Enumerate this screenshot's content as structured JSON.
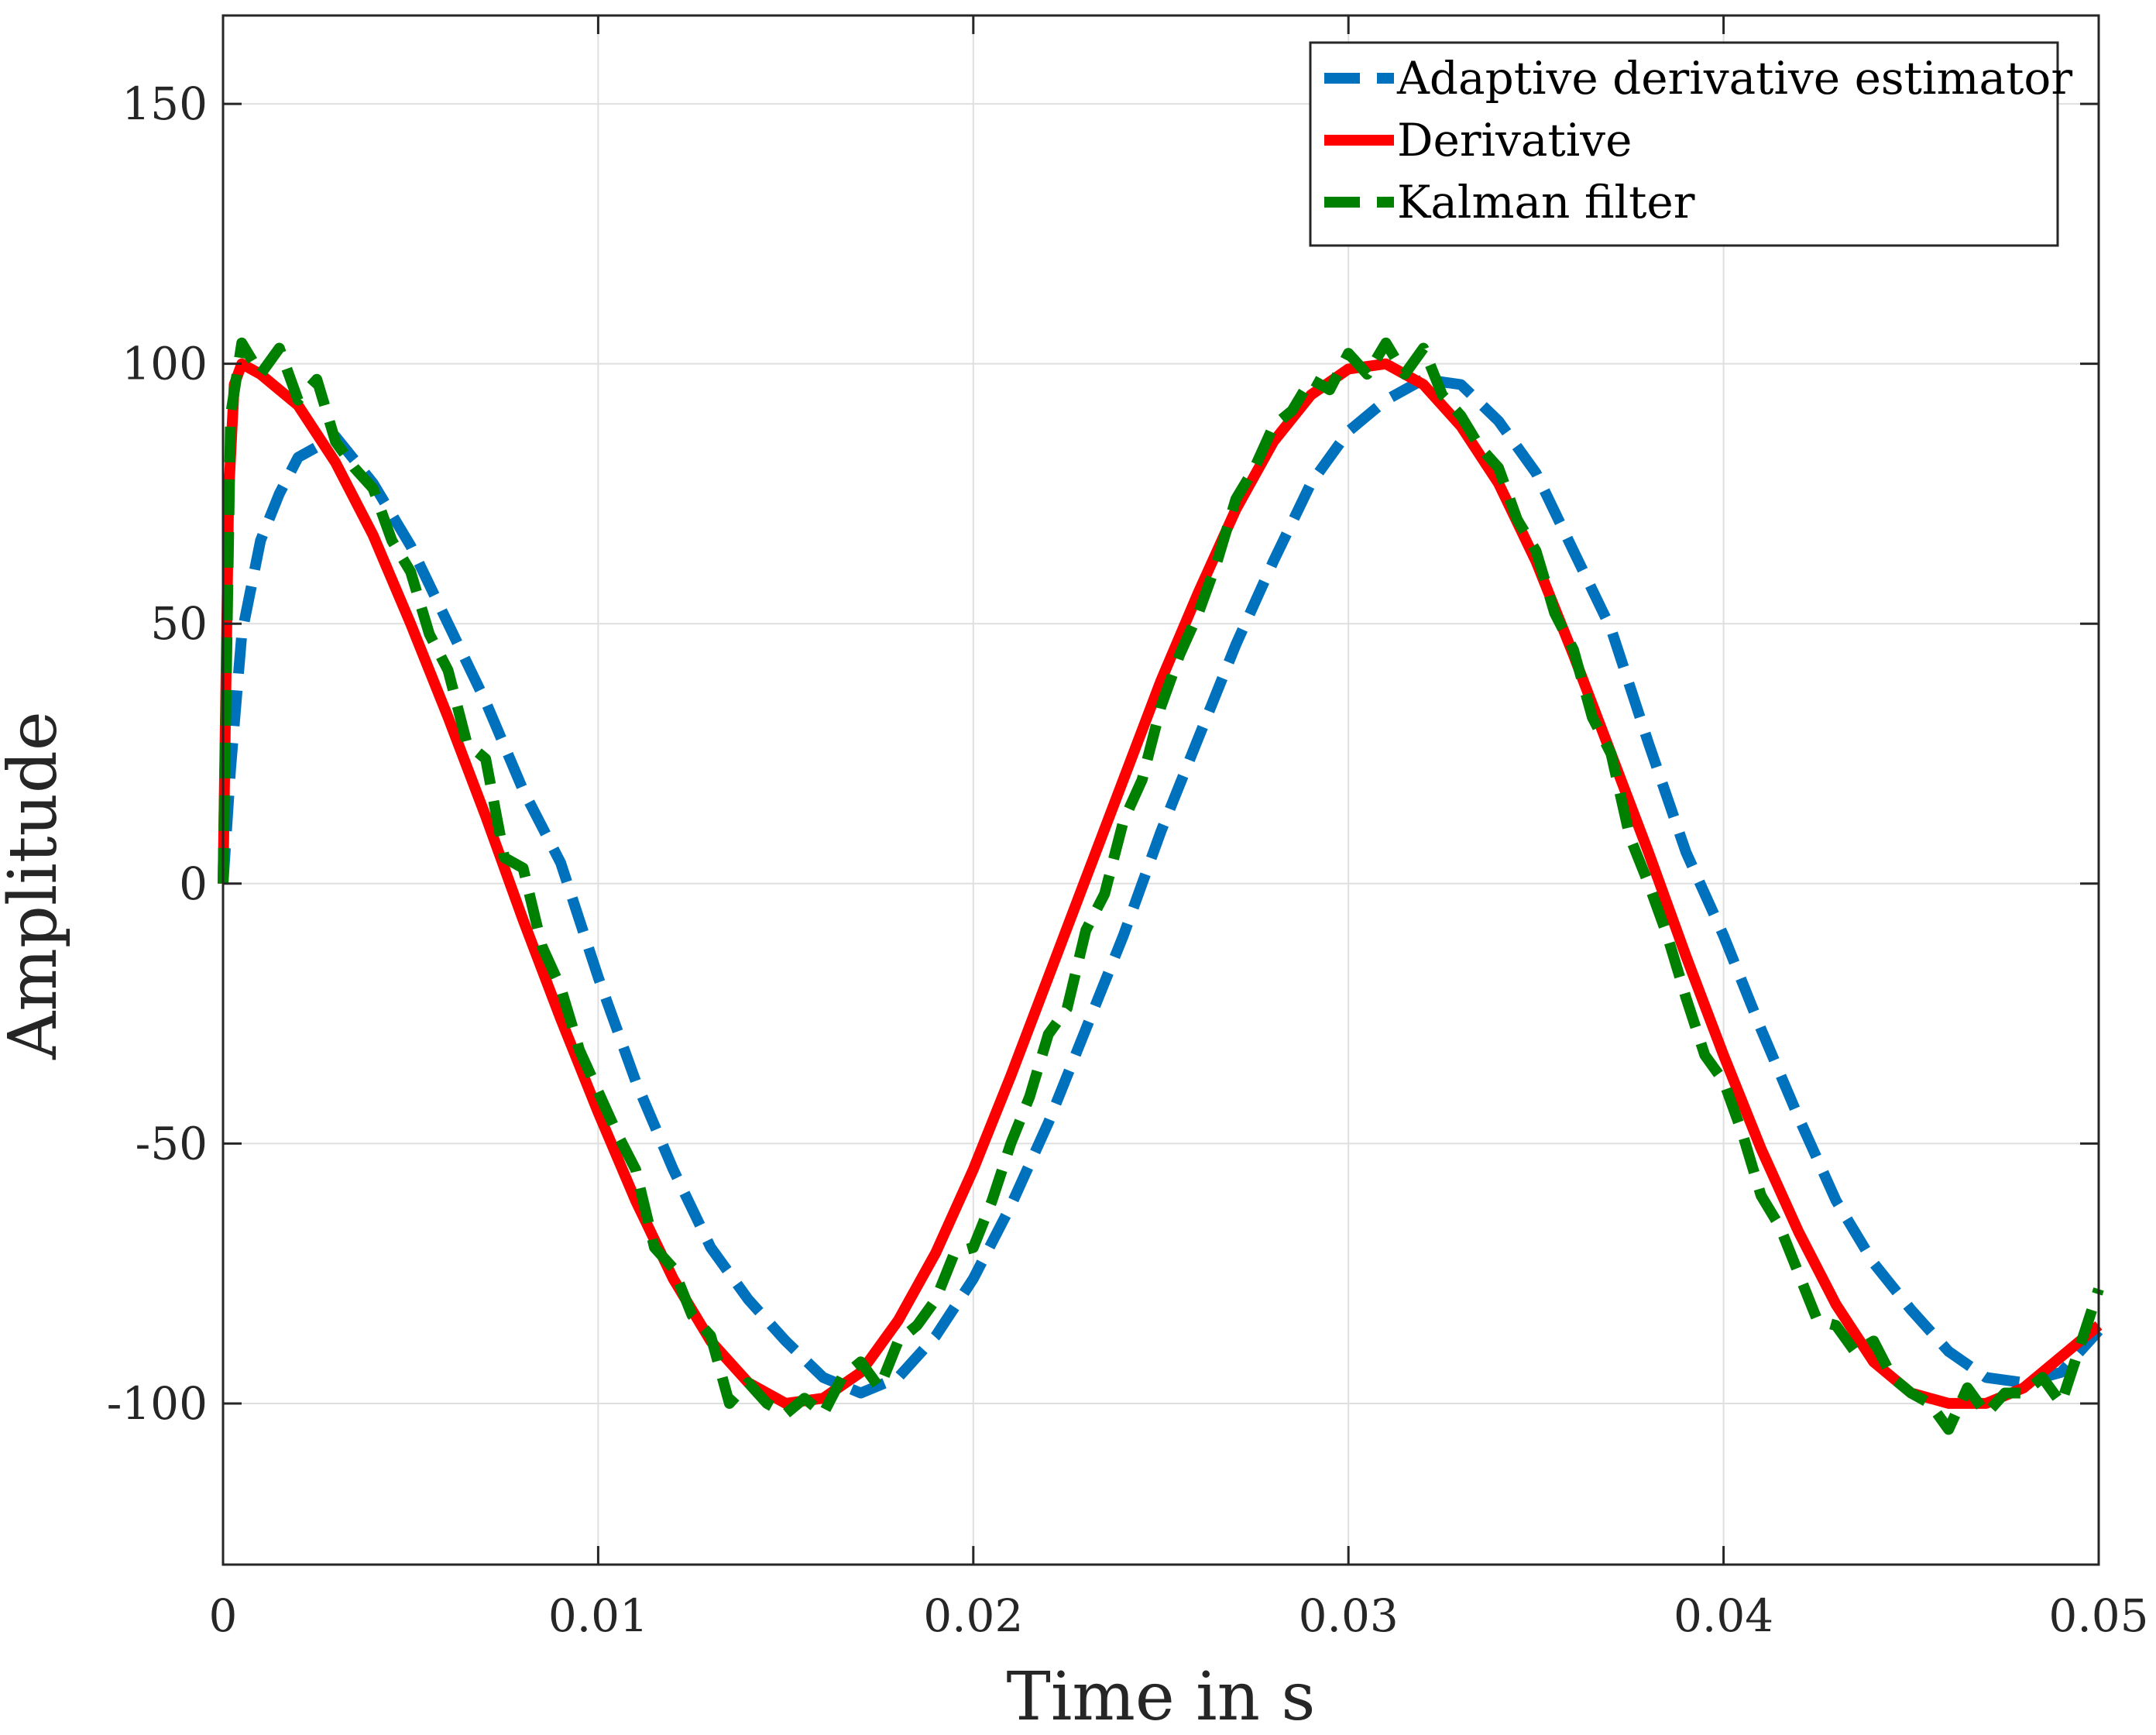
{
  "chart_data": {
    "type": "line",
    "title": "",
    "xlabel": "Time in s",
    "ylabel": "Amplitude",
    "xlim": [
      0,
      0.05
    ],
    "ylim": [
      -131,
      167
    ],
    "grid": true,
    "legend_position": "top-right",
    "x_ticks": [
      0,
      0.01,
      0.02,
      0.03,
      0.04,
      0.05
    ],
    "x_tick_labels": [
      "0",
      "0.01",
      "0.02",
      "0.03",
      "0.04",
      "0.05"
    ],
    "y_ticks": [
      -100,
      -50,
      0,
      50,
      100,
      150
    ],
    "y_tick_labels": [
      "-100",
      "-50",
      "0",
      "50",
      "100",
      "150"
    ],
    "series": [
      {
        "name": "Adaptive derivative estimator",
        "color": "#0072BD",
        "style": "dashed",
        "x": [
          0,
          0.0002,
          0.0005,
          0.001,
          0.0015,
          0.002,
          0.003,
          0.004,
          0.005,
          0.006,
          0.007,
          0.008,
          0.009,
          0.01,
          0.011,
          0.012,
          0.013,
          0.014,
          0.015,
          0.016,
          0.017,
          0.018,
          0.019,
          0.02,
          0.021,
          0.022,
          0.023,
          0.024,
          0.025,
          0.026,
          0.027,
          0.028,
          0.029,
          0.03,
          0.031,
          0.032,
          0.033,
          0.034,
          0.035,
          0.036,
          0.037,
          0.038,
          0.039,
          0.04,
          0.041,
          0.042,
          0.043,
          0.044,
          0.045,
          0.046,
          0.047,
          0.048,
          0.049,
          0.05
        ],
        "values": [
          0,
          22,
          48,
          66,
          75,
          82,
          86,
          77,
          65,
          50,
          35,
          18,
          4,
          -18,
          -38,
          -55,
          -70,
          -80,
          -88,
          -95,
          -98,
          -95,
          -87,
          -76,
          -62,
          -46,
          -28,
          -10,
          10,
          28,
          46,
          62,
          77,
          87,
          93,
          97,
          96,
          89,
          79,
          64,
          49,
          27,
          6,
          -10,
          -28,
          -45,
          -61,
          -73,
          -82,
          -90,
          -95,
          -96,
          -94,
          -86
        ]
      },
      {
        "name": "Derivative",
        "color": "#FF0000",
        "style": "solid",
        "x": [
          0,
          0.00015,
          0.0003,
          0.0005,
          0.001,
          0.002,
          0.003,
          0.004,
          0.005,
          0.006,
          0.007,
          0.008,
          0.009,
          0.01,
          0.011,
          0.012,
          0.013,
          0.014,
          0.015,
          0.016,
          0.017,
          0.018,
          0.019,
          0.02,
          0.021,
          0.022,
          0.023,
          0.024,
          0.025,
          0.026,
          0.027,
          0.028,
          0.029,
          0.03,
          0.031,
          0.032,
          0.033,
          0.034,
          0.035,
          0.036,
          0.037,
          0.038,
          0.039,
          0.04,
          0.041,
          0.042,
          0.043,
          0.044,
          0.045,
          0.046,
          0.047,
          0.048,
          0.049,
          0.05
        ],
        "values": [
          0,
          75,
          96,
          100,
          98,
          92,
          81,
          67,
          50,
          32,
          13,
          -7,
          -26,
          -44,
          -61,
          -76,
          -88,
          -96,
          -100,
          -99,
          -94,
          -84,
          -71,
          -55,
          -37,
          -18,
          1,
          20,
          39,
          56,
          72,
          85,
          94,
          99,
          100,
          96,
          88,
          77,
          62,
          44,
          25,
          6,
          -14,
          -33,
          -51,
          -67,
          -81,
          -92,
          -98,
          -100,
          -100,
          -97,
          -91,
          -85
        ]
      },
      {
        "name": "Kalman filter",
        "color": "#008000",
        "style": "dashed",
        "x": [
          0,
          0.0002,
          0.0005,
          0.001,
          0.0015,
          0.002,
          0.0025,
          0.003,
          0.0035,
          0.004,
          0.0045,
          0.005,
          0.0055,
          0.006,
          0.0065,
          0.007,
          0.0075,
          0.008,
          0.0085,
          0.009,
          0.0095,
          0.01,
          0.0105,
          0.011,
          0.0115,
          0.012,
          0.0125,
          0.013,
          0.0135,
          0.014,
          0.0145,
          0.015,
          0.0155,
          0.016,
          0.0165,
          0.017,
          0.0175,
          0.018,
          0.0185,
          0.019,
          0.0195,
          0.02,
          0.0205,
          0.021,
          0.0215,
          0.022,
          0.0225,
          0.023,
          0.0235,
          0.024,
          0.0245,
          0.025,
          0.0255,
          0.026,
          0.0265,
          0.027,
          0.0275,
          0.028,
          0.0285,
          0.029,
          0.0295,
          0.03,
          0.0305,
          0.031,
          0.0315,
          0.032,
          0.0325,
          0.033,
          0.0335,
          0.034,
          0.0345,
          0.035,
          0.0355,
          0.036,
          0.0365,
          0.037,
          0.0375,
          0.038,
          0.0385,
          0.039,
          0.0395,
          0.04,
          0.0405,
          0.041,
          0.0415,
          0.042,
          0.0425,
          0.043,
          0.0435,
          0.044,
          0.0445,
          0.045,
          0.0455,
          0.046,
          0.0465,
          0.047,
          0.0475,
          0.048,
          0.0485,
          0.049,
          0.0495,
          0.05
        ],
        "values": [
          0,
          90,
          104,
          98,
          103,
          93,
          97,
          85,
          80,
          76,
          66,
          60,
          48,
          41,
          27,
          24,
          5,
          3,
          -12,
          -20,
          -32,
          -40,
          -48,
          -55,
          -70,
          -74,
          -83,
          -87,
          -100,
          -96,
          -100,
          -102,
          -99,
          -102,
          -95,
          -92,
          -97,
          -88,
          -85,
          -80,
          -71,
          -70,
          -61,
          -50,
          -41,
          -29,
          -24,
          -9,
          -2,
          12,
          20,
          34,
          44,
          52,
          62,
          74,
          80,
          88,
          91,
          97,
          95,
          102,
          98,
          104,
          98,
          103,
          94,
          90,
          84,
          80,
          70,
          64,
          52,
          45,
          32,
          25,
          9,
          0,
          -10,
          -22,
          -33,
          -38,
          -48,
          -60,
          -66,
          -75,
          -84,
          -85,
          -90,
          -88,
          -95,
          -98,
          -100,
          -105,
          -97,
          -102,
          -98,
          -98,
          -95,
          -100,
          -89,
          -78
        ]
      }
    ]
  }
}
